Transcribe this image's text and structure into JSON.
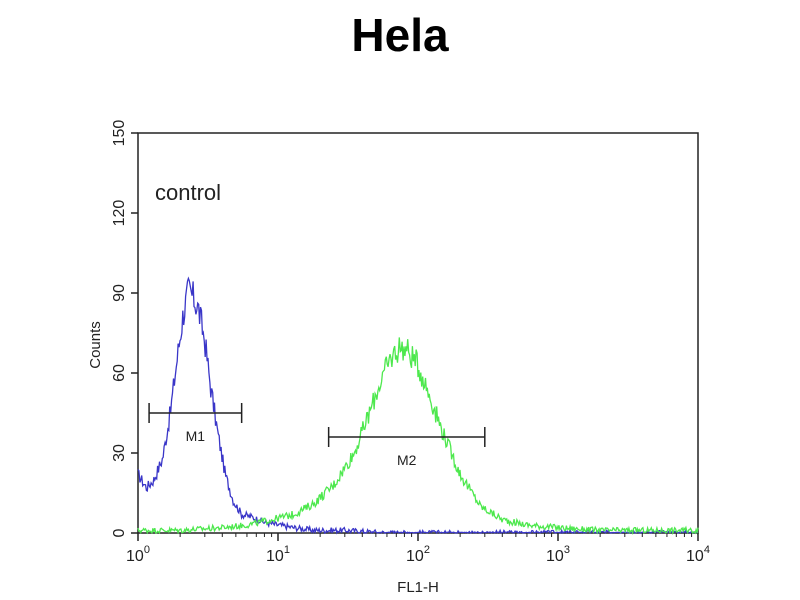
{
  "chart_data": {
    "type": "line",
    "title": "Hela",
    "xlabel": "FL1-H",
    "ylabel": "Counts",
    "x_scale": "log",
    "xlim": [
      1,
      10000
    ],
    "ylim": [
      0,
      150
    ],
    "x_ticks": [
      {
        "value": 1,
        "base": "10",
        "exp": "0"
      },
      {
        "value": 10,
        "base": "10",
        "exp": "1"
      },
      {
        "value": 100,
        "base": "10",
        "exp": "2"
      },
      {
        "value": 1000,
        "base": "10",
        "exp": "3"
      },
      {
        "value": 10000,
        "base": "10",
        "exp": "4"
      }
    ],
    "y_ticks": [
      0,
      30,
      60,
      90,
      120,
      150
    ],
    "grid": false,
    "annotation": "control",
    "series": [
      {
        "color": "#3a36c8",
        "points": [
          [
            1,
            22
          ],
          [
            1.15,
            17
          ],
          [
            1.3,
            20
          ],
          [
            1.5,
            28
          ],
          [
            1.7,
            45
          ],
          [
            1.9,
            65
          ],
          [
            2.1,
            82
          ],
          [
            2.3,
            91
          ],
          [
            2.5,
            88
          ],
          [
            2.7,
            84
          ],
          [
            3.0,
            72
          ],
          [
            3.3,
            55
          ],
          [
            3.7,
            38
          ],
          [
            4.2,
            22
          ],
          [
            4.8,
            12
          ],
          [
            5.5,
            7
          ],
          [
            6.5,
            6
          ],
          [
            8,
            4
          ],
          [
            10,
            3
          ],
          [
            13,
            2
          ],
          [
            18,
            1
          ],
          [
            30,
            1
          ],
          [
            60,
            0
          ],
          [
            200,
            0
          ],
          [
            10000,
            0
          ]
        ]
      },
      {
        "color": "#4de84d",
        "points": [
          [
            1,
            1
          ],
          [
            2,
            1
          ],
          [
            4,
            2
          ],
          [
            6,
            3
          ],
          [
            9,
            5
          ],
          [
            13,
            7
          ],
          [
            18,
            11
          ],
          [
            25,
            18
          ],
          [
            35,
            30
          ],
          [
            45,
            45
          ],
          [
            55,
            58
          ],
          [
            65,
            66
          ],
          [
            75,
            70
          ],
          [
            85,
            68
          ],
          [
            100,
            63
          ],
          [
            120,
            52
          ],
          [
            150,
            38
          ],
          [
            200,
            22
          ],
          [
            280,
            10
          ],
          [
            400,
            5
          ],
          [
            600,
            3
          ],
          [
            1000,
            2
          ],
          [
            2000,
            1
          ],
          [
            5000,
            1
          ],
          [
            10000,
            1
          ]
        ]
      }
    ],
    "markers": [
      {
        "label": "M1",
        "x_range": [
          1.2,
          5.5
        ],
        "y": 45
      },
      {
        "label": "M2",
        "x_range": [
          23,
          300
        ],
        "y": 36
      }
    ]
  }
}
